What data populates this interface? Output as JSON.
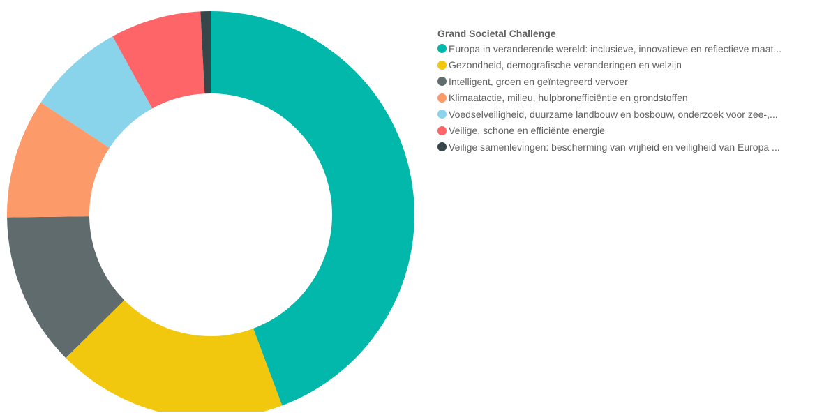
{
  "chart_data": {
    "type": "pie",
    "donut": true,
    "legend_title": "Grand Societal Challenge",
    "legend_position": "right",
    "categories": [
      "Europa in veranderende wereld: inclusieve, innovatieve en reflectieve maat...",
      "Gezondheid, demografische veranderingen en welzijn",
      "Intelligent, groen en geïntegreerd vervoer",
      "Klimaatactie, milieu, hulpbronefficiëntie en grondstoffen",
      "Voedselveiligheid, duurzame landbouw en bosbouw, onderzoek voor zee-,...",
      "Veilige, schone en efficiënte energie",
      "Veilige samenlevingen: bescherming van vrijheid en veiligheid van Europa ..."
    ],
    "values": [
      44.3,
      18.3,
      12.2,
      9.5,
      7.7,
      7.2,
      0.8
    ],
    "colors": [
      "#01B8AA",
      "#F2C80F",
      "#5F6B6D",
      "#FD9A6A",
      "#8AD4EB",
      "#FE6568",
      "#374649"
    ],
    "slice_order": [
      0,
      1,
      2,
      3,
      4,
      5,
      6
    ]
  }
}
